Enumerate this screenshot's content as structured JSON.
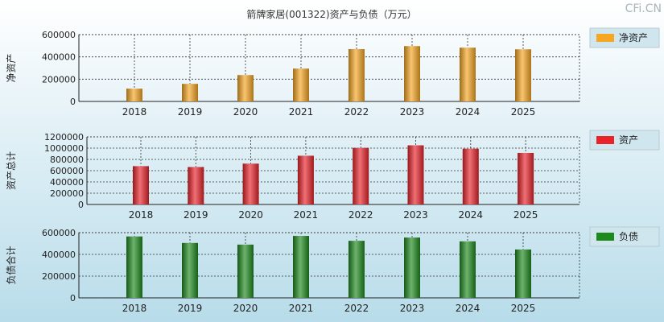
{
  "title": "箭牌家居(001322)资产与负债（万元）",
  "watermark": "CFi.CN",
  "colors": {
    "background_top": "#ffffff",
    "background_bottom": "#b8dcea",
    "net_assets": "#f5a623",
    "assets": "#e8232a",
    "liabilities": "#1e8a1e",
    "legend_box": "#cfe6ef"
  },
  "chart_data": [
    {
      "type": "bar",
      "ylabel": "净资产",
      "categories": [
        "2018",
        "2019",
        "2020",
        "2021",
        "2022",
        "2023",
        "2024",
        "2025"
      ],
      "series": [
        {
          "name": "净资产",
          "values": [
            115000,
            158000,
            237000,
            295000,
            470000,
            497000,
            483000,
            468000
          ]
        }
      ],
      "ylim": [
        0,
        600000
      ],
      "yticks": [
        "0",
        "200000",
        "400000",
        "600000"
      ],
      "grid": true,
      "legend_position": "right"
    },
    {
      "type": "bar",
      "ylabel": "资产总计",
      "categories": [
        "2018",
        "2019",
        "2020",
        "2021",
        "2022",
        "2023",
        "2024",
        "2025"
      ],
      "series": [
        {
          "name": "资产",
          "values": [
            680000,
            665000,
            725000,
            865000,
            1005000,
            1050000,
            990000,
            915000
          ]
        }
      ],
      "ylim": [
        0,
        1200000
      ],
      "yticks": [
        "0",
        "200000",
        "400000",
        "600000",
        "800000",
        "1000000",
        "1200000"
      ],
      "grid": true,
      "legend_position": "right"
    },
    {
      "type": "bar",
      "ylabel": "负债合计",
      "categories": [
        "2018",
        "2019",
        "2020",
        "2021",
        "2022",
        "2023",
        "2024",
        "2025"
      ],
      "series": [
        {
          "name": "负债",
          "values": [
            565000,
            505000,
            490000,
            570000,
            525000,
            555000,
            520000,
            445000
          ]
        }
      ],
      "ylim": [
        0,
        600000
      ],
      "yticks": [
        "0",
        "200000",
        "400000",
        "600000"
      ],
      "grid": true,
      "legend_position": "right"
    }
  ]
}
